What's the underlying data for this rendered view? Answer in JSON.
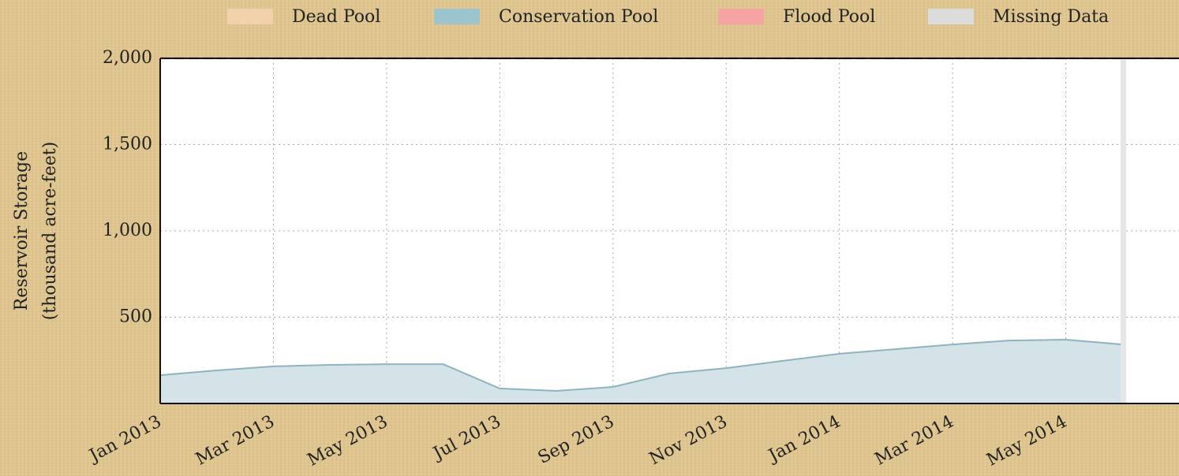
{
  "chart_data": {
    "type": "area",
    "y_label_lines": [
      "Reservoir Storage",
      "(thousand acre-feet)"
    ],
    "legend": [
      {
        "name": "Dead Pool",
        "color": "#f2d2aa"
      },
      {
        "name": "Conservation Pool",
        "color": "#9cc4cf"
      },
      {
        "name": "Flood Pool",
        "color": "#f5a3a3"
      },
      {
        "name": "Missing Data",
        "color": "#dcdcdc"
      }
    ],
    "x": [
      "2013-01",
      "2013-02",
      "2013-03",
      "2013-04",
      "2013-05",
      "2013-06",
      "2013-07",
      "2013-08",
      "2013-09",
      "2013-10",
      "2013-11",
      "2013-12",
      "2014-01",
      "2014-02",
      "2014-03",
      "2014-04",
      "2014-05",
      "2014-06"
    ],
    "series": [
      {
        "name": "Conservation Pool",
        "color": "#d3e3e8",
        "line_color": "#8fb3bf",
        "values": [
          164,
          192,
          215,
          224,
          228,
          228,
          87,
          73,
          96,
          174,
          205,
          247,
          288,
          315,
          342,
          365,
          370,
          342
        ]
      }
    ],
    "flood_level": 2000,
    "flood_color": "#d98080",
    "xlim": [
      "2013-01",
      "2014-07"
    ],
    "xticks": [
      {
        "value": "2013-01",
        "label": "Jan 2013"
      },
      {
        "value": "2013-03",
        "label": "Mar 2013"
      },
      {
        "value": "2013-05",
        "label": "May 2013"
      },
      {
        "value": "2013-07",
        "label": "Jul 2013"
      },
      {
        "value": "2013-09",
        "label": "Sep 2013"
      },
      {
        "value": "2013-11",
        "label": "Nov 2013"
      },
      {
        "value": "2014-01",
        "label": "Jan 2014"
      },
      {
        "value": "2014-03",
        "label": "Mar 2014"
      },
      {
        "value": "2014-05",
        "label": "May 2014"
      }
    ],
    "ylim": [
      0,
      2000
    ],
    "yticks": [
      500,
      {
        "value": 1000,
        "label": "1,000"
      },
      {
        "value": 1500,
        "label": "1,500"
      },
      {
        "value": 2000,
        "label": "2,000"
      }
    ],
    "grid": true
  }
}
